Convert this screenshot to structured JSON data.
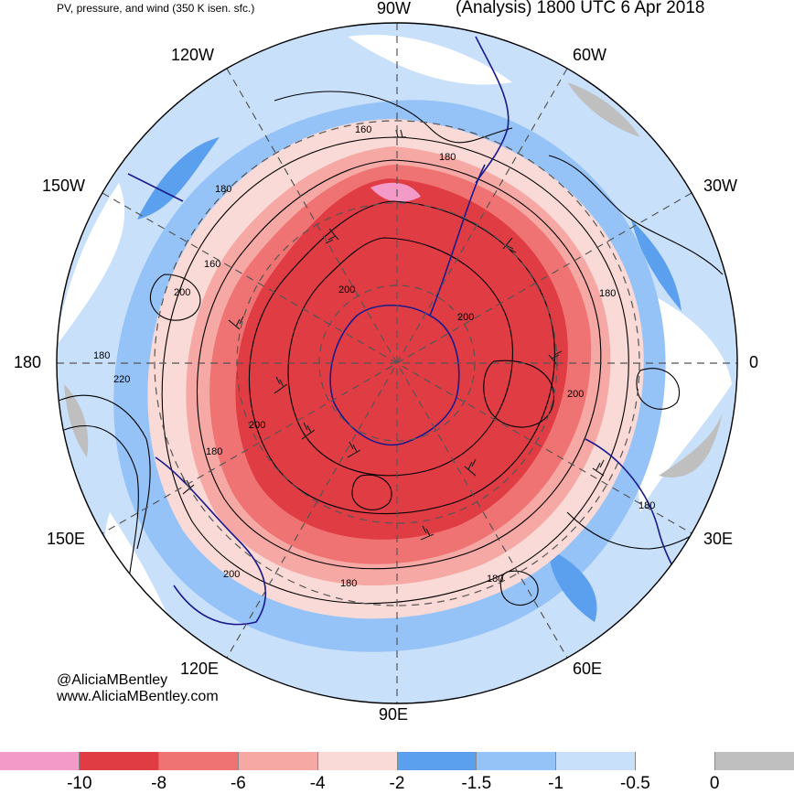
{
  "header": {
    "subtitle": "PV, pressure, and wind (350 K isen. sfc.)",
    "analysis": "(Analysis) 1800 UTC 6 Apr 2018"
  },
  "map": {
    "projection": "south-polar-stereographic",
    "longitude_labels": [
      "90W",
      "60W",
      "30W",
      "0",
      "30E",
      "60E",
      "90E",
      "120E",
      "150E",
      "180",
      "150W",
      "120W"
    ],
    "contour_labels": [
      "160",
      "180",
      "160",
      "200",
      "200",
      "200",
      "180",
      "200",
      "180",
      "200",
      "160",
      "180",
      "200",
      "180",
      "220",
      "180",
      "200",
      "180",
      "180"
    ],
    "colors": {
      "coast": "#1a1a8c",
      "contour": "#000000",
      "grid": "#555555"
    }
  },
  "credits": {
    "handle": "@AliciaMBentley",
    "site": "www.AliciaMBentley.com"
  },
  "colorbar": {
    "colors": [
      "#f49ac9",
      "#e03c44",
      "#f07373",
      "#f5a8a4",
      "#fadad6",
      "#5aa0ef",
      "#96c3f7",
      "#c9e0fb",
      "#ffffff",
      "#bfbfbf"
    ],
    "labels": [
      "-10",
      "-8",
      "-6",
      "-4",
      "-2",
      "-1.5",
      "-1",
      "-0.5",
      "0"
    ]
  }
}
